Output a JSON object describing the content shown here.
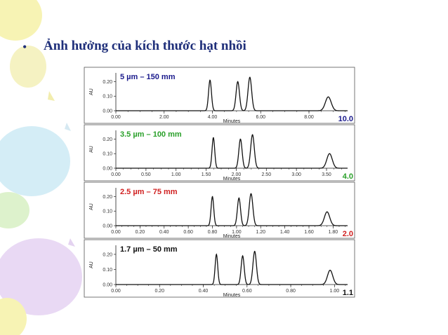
{
  "slide": {
    "bullet": "•",
    "title": "Ảnh hưởng của kích thước hạt nhồi"
  },
  "colors": {
    "title": "#1f2f7a",
    "line": "#111111",
    "balloons": [
      "#cdeaf5",
      "#f6f2a8",
      "#e6d3f3",
      "#d8f0c4"
    ]
  },
  "chart_data": [
    {
      "type": "line",
      "title": "5 µm – 150 mm",
      "title_color": "#1a1a8c",
      "scale_label": "10.0",
      "scale_color": "#1a1a8c",
      "xlabel": "Minutes",
      "ylabel": "AU",
      "xlim": [
        0,
        9.6
      ],
      "ylim": [
        0,
        0.26
      ],
      "x_ticks": [
        "0.00",
        "2.00",
        "4.00",
        "6.00",
        "8.00"
      ],
      "x_tick_values": [
        0,
        2,
        4,
        6,
        8
      ],
      "y_ticks": [
        "0.20",
        "0.10",
        "0.00"
      ],
      "y_tick_values": [
        0.2,
        0.1,
        0
      ],
      "peaks": [
        {
          "x": 3.9,
          "height": 0.21,
          "width": 0.06
        },
        {
          "x": 5.05,
          "height": 0.2,
          "width": 0.07
        },
        {
          "x": 5.55,
          "height": 0.23,
          "width": 0.075
        },
        {
          "x": 8.8,
          "height": 0.095,
          "width": 0.12
        }
      ]
    },
    {
      "type": "line",
      "title": "3.5 µm – 100 mm",
      "title_color": "#2aa02a",
      "scale_label": "4.0",
      "scale_color": "#2aa02a",
      "xlabel": "Minutes",
      "ylabel": "AU",
      "xlim": [
        0,
        3.85
      ],
      "ylim": [
        0,
        0.26
      ],
      "x_ticks": [
        "0.00",
        "0.50",
        "1.00",
        "1.50",
        "2.00",
        "2.50",
        "3.00",
        "3.50"
      ],
      "x_tick_values": [
        0,
        0.5,
        1,
        1.5,
        2,
        2.5,
        3,
        3.5
      ],
      "y_ticks": [
        "0.20",
        "0.10",
        "0.00"
      ],
      "y_tick_values": [
        0.2,
        0.1,
        0
      ],
      "peaks": [
        {
          "x": 1.62,
          "height": 0.21,
          "width": 0.022
        },
        {
          "x": 2.07,
          "height": 0.2,
          "width": 0.027
        },
        {
          "x": 2.27,
          "height": 0.23,
          "width": 0.03
        },
        {
          "x": 3.55,
          "height": 0.1,
          "width": 0.045
        }
      ]
    },
    {
      "type": "line",
      "title": "2.5 µm – 75 mm",
      "title_color": "#d02020",
      "scale_label": "2.0",
      "scale_color": "#d02020",
      "xlabel": "Minutes",
      "ylabel": "AU",
      "xlim": [
        0,
        1.92
      ],
      "ylim": [
        0,
        0.26
      ],
      "x_ticks": [
        "0.00",
        "0.20",
        "0.40",
        "0.60",
        "0.80",
        "1.00",
        "1.20",
        "1.40",
        "1.60",
        "1.80"
      ],
      "x_tick_values": [
        0,
        0.2,
        0.4,
        0.6,
        0.8,
        1,
        1.2,
        1.4,
        1.6,
        1.8
      ],
      "y_ticks": [
        "0.20",
        "0.10",
        "0.00"
      ],
      "y_tick_values": [
        0.2,
        0.1,
        0
      ],
      "peaks": [
        {
          "x": 0.8,
          "height": 0.2,
          "width": 0.011
        },
        {
          "x": 1.02,
          "height": 0.19,
          "width": 0.013
        },
        {
          "x": 1.12,
          "height": 0.22,
          "width": 0.015
        },
        {
          "x": 1.75,
          "height": 0.095,
          "width": 0.022
        }
      ]
    },
    {
      "type": "line",
      "title": "1.7 µm – 50 mm",
      "title_color": "#111111",
      "scale_label": "1.1",
      "scale_color": "#111111",
      "xlabel": "Minutes",
      "ylabel": "AU",
      "xlim": [
        0,
        1.06
      ],
      "ylim": [
        0,
        0.26
      ],
      "x_ticks": [
        "0.00",
        "0.20",
        "0.40",
        "0.60",
        "0.80",
        "1.00"
      ],
      "x_tick_values": [
        0,
        0.2,
        0.4,
        0.6,
        0.8,
        1
      ],
      "y_ticks": [
        "0.20",
        "0.10",
        "0.00"
      ],
      "y_tick_values": [
        0.2,
        0.1,
        0
      ],
      "peaks": [
        {
          "x": 0.46,
          "height": 0.2,
          "width": 0.006
        },
        {
          "x": 0.58,
          "height": 0.19,
          "width": 0.007
        },
        {
          "x": 0.635,
          "height": 0.22,
          "width": 0.008
        },
        {
          "x": 0.98,
          "height": 0.095,
          "width": 0.012
        }
      ]
    }
  ]
}
